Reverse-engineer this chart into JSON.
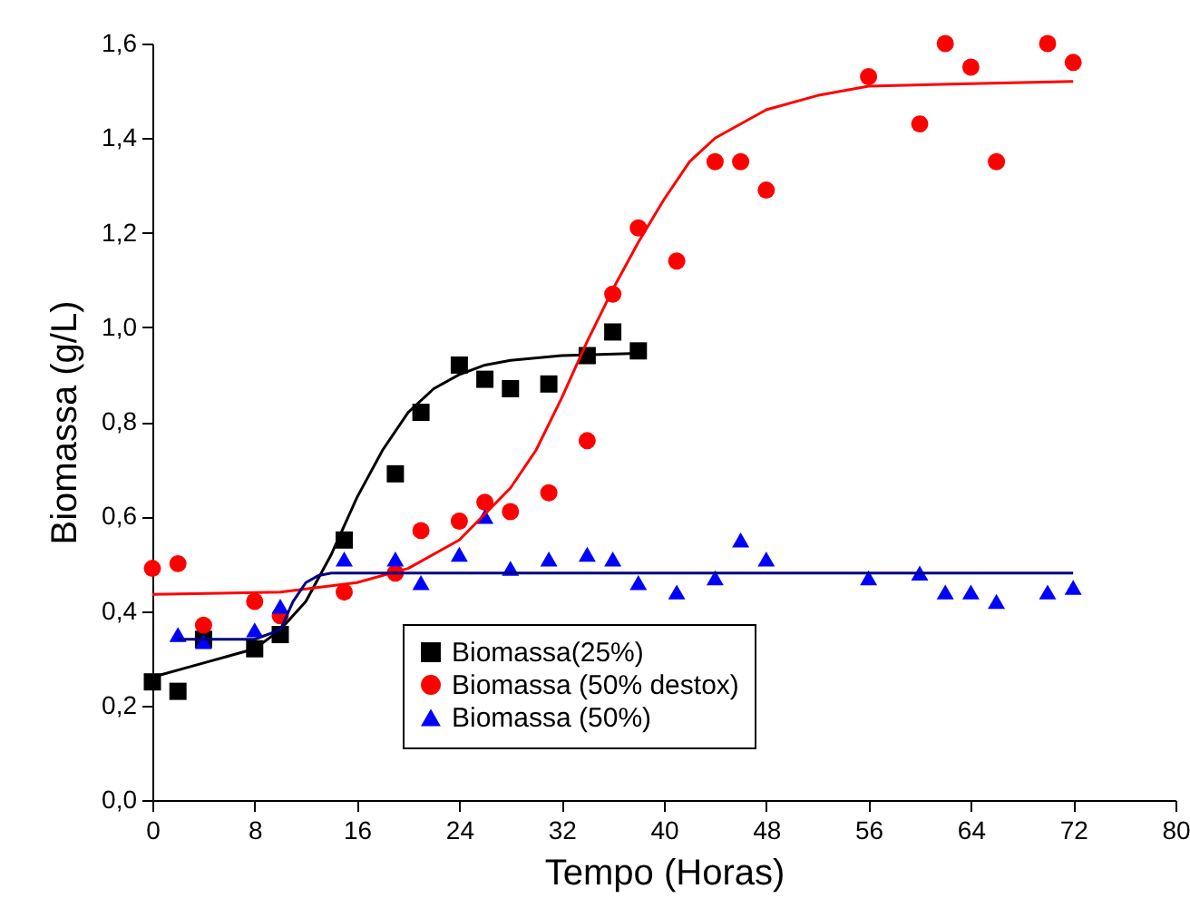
{
  "chart_data": {
    "type": "scatter",
    "xlabel": "Tempo (Horas)",
    "ylabel": "Biomassa (g/L)",
    "xlim": [
      0,
      80
    ],
    "ylim": [
      0,
      1.6
    ],
    "xticks": [
      0,
      8,
      16,
      24,
      32,
      40,
      48,
      56,
      64,
      72,
      80
    ],
    "yticks": [
      {
        "value": 0,
        "label": "0,0"
      },
      {
        "value": 0.2,
        "label": "0,2"
      },
      {
        "value": 0.4,
        "label": "0,4"
      },
      {
        "value": 0.6,
        "label": "0,6"
      },
      {
        "value": 0.8,
        "label": "0,8"
      },
      {
        "value": 1.0,
        "label": "1,0"
      },
      {
        "value": 1.2,
        "label": "1,2"
      },
      {
        "value": 1.4,
        "label": "1,4"
      },
      {
        "value": 1.6,
        "label": "1,6"
      }
    ],
    "grid": false,
    "legend": "bottom",
    "series": [
      {
        "name": "Biomassa(25%)",
        "marker": "square",
        "color": "#000000",
        "x": [
          0,
          2,
          4,
          8,
          10,
          15,
          19,
          21,
          24,
          26,
          28,
          31,
          34,
          36,
          38
        ],
        "values": [
          0.25,
          0.23,
          0.34,
          0.32,
          0.35,
          0.55,
          0.69,
          0.82,
          0.92,
          0.89,
          0.87,
          0.88,
          0.94,
          0.99,
          0.95
        ]
      },
      {
        "name": "Biomassa (50% destox)",
        "marker": "circle",
        "color": "#ff0000",
        "x": [
          0,
          2,
          4,
          8,
          10,
          15,
          19,
          21,
          24,
          26,
          28,
          31,
          34,
          36,
          38,
          41,
          44,
          46,
          48,
          56,
          60,
          62,
          64,
          66,
          70,
          72
        ],
        "values": [
          0.49,
          0.5,
          0.37,
          0.42,
          0.39,
          0.44,
          0.48,
          0.57,
          0.59,
          0.63,
          0.61,
          0.65,
          0.76,
          1.07,
          1.21,
          1.14,
          1.35,
          1.35,
          1.29,
          1.53,
          1.43,
          1.6,
          1.55,
          1.35,
          1.6,
          1.56
        ]
      },
      {
        "name": "Biomassa (50%)",
        "marker": "triangle",
        "color": "#0000ff",
        "x": [
          2,
          4,
          8,
          10,
          15,
          19,
          21,
          24,
          26,
          28,
          31,
          34,
          36,
          38,
          41,
          44,
          46,
          48,
          56,
          60,
          62,
          64,
          66,
          70,
          72
        ],
        "values": [
          0.35,
          0.335,
          0.36,
          0.41,
          0.51,
          0.51,
          0.46,
          0.52,
          0.6,
          0.49,
          0.51,
          0.52,
          0.51,
          0.46,
          0.44,
          0.47,
          0.55,
          0.51,
          0.47,
          0.48,
          0.44,
          0.44,
          0.42,
          0.44,
          0.45
        ]
      },
      {
        "type": "line",
        "marker": "none",
        "line_style": "solid",
        "color": "#000000",
        "x": [
          0,
          4,
          8,
          10,
          12,
          14,
          16,
          18,
          20,
          22,
          24,
          26,
          28,
          32,
          38
        ],
        "values": [
          0.26,
          0.29,
          0.32,
          0.36,
          0.42,
          0.52,
          0.64,
          0.74,
          0.82,
          0.87,
          0.9,
          0.92,
          0.93,
          0.94,
          0.945
        ]
      },
      {
        "type": "line",
        "marker": "none",
        "line_style": "solid",
        "color": "#ff0000",
        "x": [
          0,
          10,
          16,
          20,
          24,
          28,
          30,
          32,
          34,
          36,
          38,
          40,
          42,
          44,
          48,
          52,
          56,
          64,
          72
        ],
        "values": [
          0.435,
          0.44,
          0.46,
          0.49,
          0.55,
          0.66,
          0.74,
          0.85,
          0.97,
          1.08,
          1.18,
          1.27,
          1.35,
          1.4,
          1.46,
          1.49,
          1.51,
          1.515,
          1.52
        ]
      },
      {
        "type": "line",
        "marker": "none",
        "line_style": "solid",
        "color": "#000080",
        "x": [
          2,
          8,
          10,
          11,
          12,
          13,
          14,
          72
        ],
        "values": [
          0.34,
          0.34,
          0.36,
          0.42,
          0.46,
          0.475,
          0.48,
          0.48
        ]
      }
    ]
  }
}
